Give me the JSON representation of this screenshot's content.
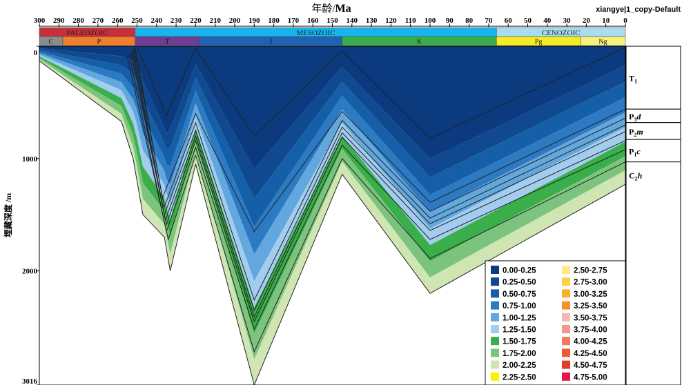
{
  "title": "",
  "tagline": "xiangye|1_copy-Default",
  "chart_data": {
    "type": "area",
    "x_axis": {
      "label_prefix": "年龄/",
      "label_unit": "Ma",
      "range": [
        300,
        0
      ],
      "ticks": [
        300,
        290,
        280,
        270,
        260,
        250,
        240,
        230,
        220,
        210,
        200,
        190,
        180,
        170,
        160,
        150,
        140,
        130,
        120,
        110,
        100,
        90,
        80,
        70,
        60,
        50,
        40,
        30,
        20,
        10,
        0
      ]
    },
    "y_axis": {
      "label": "埋藏深度 /m",
      "range": [
        0,
        3016
      ],
      "ticks": [
        0,
        1000,
        2000,
        3016
      ]
    },
    "eras": [
      {
        "name": "PALEOZOIC",
        "start": 300,
        "end": 251,
        "color": "#c6303a"
      },
      {
        "name": "MESOZOIC",
        "start": 251,
        "end": 66,
        "color": "#18b4ec"
      },
      {
        "name": "CENOZOIC",
        "start": 66,
        "end": 0,
        "color": "#a8dcef"
      }
    ],
    "periods": [
      {
        "name": "C",
        "start": 300,
        "end": 288,
        "color": "#8c8c8c"
      },
      {
        "name": "P",
        "start": 288,
        "end": 251,
        "color": "#f07e2b"
      },
      {
        "name": "T",
        "start": 251,
        "end": 218,
        "color": "#6f3d94"
      },
      {
        "name": "J",
        "start": 218,
        "end": 145,
        "color": "#1f63b4"
      },
      {
        "name": "K",
        "start": 145,
        "end": 66,
        "color": "#3aae4a"
      },
      {
        "name": "Pg",
        "start": 66,
        "end": 23,
        "color": "#f5ec24"
      },
      {
        "name": "Ng",
        "start": 23,
        "end": 0,
        "color": "#f8f07c"
      }
    ],
    "strat_units": [
      {
        "label": "T",
        "sub": "1",
        "suffix": "",
        "top": 0,
        "bottom": 560
      },
      {
        "label": "P",
        "sub": "3",
        "suffix": "d",
        "top": 560,
        "bottom": 680
      },
      {
        "label": "P",
        "sub": "2",
        "suffix": "m",
        "top": 680,
        "bottom": 830
      },
      {
        "label": "P",
        "sub": "1",
        "suffix": "c",
        "top": 830,
        "bottom": 1030
      },
      {
        "label": "C",
        "sub": "2",
        "suffix": "h",
        "top": 1030,
        "bottom": 3016
      }
    ],
    "horizons": [
      {
        "name": "H1",
        "points": [
          [
            250,
            0
          ],
          [
            235,
            620
          ],
          [
            220,
            20
          ],
          [
            190,
            800
          ],
          [
            145,
            40
          ],
          [
            100,
            820
          ],
          [
            0,
            10
          ]
        ]
      },
      {
        "name": "H2",
        "points": [
          [
            251,
            10
          ],
          [
            237,
            1350
          ],
          [
            220,
            600
          ],
          [
            190,
            1650
          ],
          [
            145,
            580
          ],
          [
            100,
            1390
          ],
          [
            0,
            560
          ]
        ]
      },
      {
        "name": "H3",
        "points": [
          [
            251.5,
            20
          ],
          [
            236,
            1430
          ],
          [
            220,
            680
          ],
          [
            190,
            2260
          ],
          [
            145,
            660
          ],
          [
            100,
            1470
          ],
          [
            0,
            640
          ]
        ]
      },
      {
        "name": "H4",
        "points": [
          [
            252,
            30
          ],
          [
            236,
            1500
          ],
          [
            220,
            750
          ],
          [
            190,
            2350
          ],
          [
            145,
            720
          ],
          [
            100,
            1530
          ],
          [
            0,
            700
          ]
        ]
      },
      {
        "name": "H5",
        "points": [
          [
            252.5,
            40
          ],
          [
            235.5,
            1550
          ],
          [
            220,
            800
          ],
          [
            190,
            2410
          ],
          [
            145,
            770
          ],
          [
            100,
            1580
          ],
          [
            0,
            760
          ]
        ]
      },
      {
        "name": "H6",
        "points": [
          [
            253,
            55
          ],
          [
            235,
            1590
          ],
          [
            220,
            840
          ],
          [
            190,
            2450
          ],
          [
            145,
            810
          ],
          [
            100,
            1640
          ],
          [
            0,
            840
          ]
        ]
      },
      {
        "name": "H7",
        "points": [
          [
            254,
            70
          ],
          [
            235,
            1650
          ],
          [
            220,
            900
          ],
          [
            190,
            2520
          ],
          [
            145,
            880
          ],
          [
            100,
            1720
          ],
          [
            0,
            920
          ]
        ]
      },
      {
        "name": "H8",
        "points": [
          [
            255,
            90
          ],
          [
            234,
            1720
          ],
          [
            220,
            970
          ],
          [
            190,
            2720
          ],
          [
            145,
            1000
          ],
          [
            100,
            1890
          ],
          [
            0,
            1030
          ]
        ]
      },
      {
        "name": "Base",
        "points": [
          [
            300,
            130
          ],
          [
            258,
            670
          ],
          [
            252,
            1000
          ],
          [
            247,
            1500
          ],
          [
            236,
            1700
          ],
          [
            233,
            2000
          ],
          [
            220,
            1050
          ],
          [
            190,
            3016
          ],
          [
            145,
            1140
          ],
          [
            100,
            2200
          ],
          [
            0,
            1230
          ]
        ]
      }
    ],
    "legend": [
      {
        "range": "0.00-0.25",
        "color": "#0b3a7e"
      },
      {
        "range": "2.50-2.75",
        "color": "#ffe98a"
      },
      {
        "range": "0.25-0.50",
        "color": "#10498f"
      },
      {
        "range": "2.75-3.00",
        "color": "#fdd04a"
      },
      {
        "range": "0.50-0.75",
        "color": "#155ea8"
      },
      {
        "range": "3.00-3.25",
        "color": "#f8b231"
      },
      {
        "range": "0.75-1.00",
        "color": "#2c7ac2"
      },
      {
        "range": "3.25-3.50",
        "color": "#f5922a"
      },
      {
        "range": "1.00-1.25",
        "color": "#62a7dd"
      },
      {
        "range": "3.50-3.75",
        "color": "#f7b8b0"
      },
      {
        "range": "1.25-1.50",
        "color": "#a2cdee"
      },
      {
        "range": "3.75-4.00",
        "color": "#f5988a"
      },
      {
        "range": "1.50-1.75",
        "color": "#3aae4a"
      },
      {
        "range": "4.00-4.25",
        "color": "#f07a5e"
      },
      {
        "range": "1.75-2.00",
        "color": "#7cc47e"
      },
      {
        "range": "4.25-4.50",
        "color": "#ec5a36"
      },
      {
        "range": "2.00-2.25",
        "color": "#cfe6b3"
      },
      {
        "range": "4.50-4.75",
        "color": "#e63b25"
      },
      {
        "range": "2.25-2.50",
        "color": "#fff200"
      },
      {
        "range": "4.75-5.00",
        "color": "#e4154b"
      }
    ],
    "colors": {
      "band_0": "#0b3a7e",
      "band_1": "#10498f",
      "band_2": "#155ea8",
      "band_3": "#2c7ac2",
      "band_4": "#62a7dd",
      "band_5": "#a2cdee",
      "band_6": "#3aae4a",
      "band_7": "#7cc47e",
      "band_8": "#cfe6b3",
      "band_9": "#fff200",
      "band_10": "#ffe98a",
      "band_11": "#fdd04a"
    }
  }
}
